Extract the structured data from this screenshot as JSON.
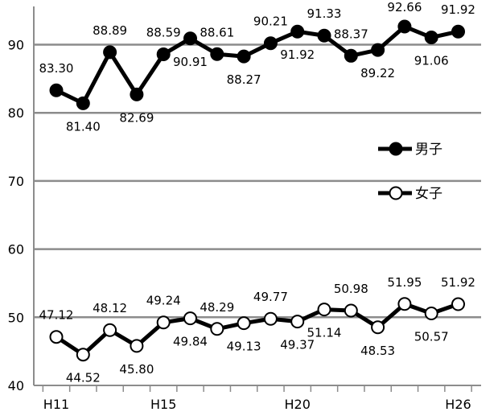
{
  "chart_data": {
    "type": "line",
    "x": [
      "H11",
      "H12",
      "H13",
      "H14",
      "H15",
      "H16",
      "H17",
      "H18",
      "H19",
      "H20",
      "H21",
      "H22",
      "H23",
      "H24",
      "H25",
      "H26"
    ],
    "x_tick_labels": [
      "H11",
      "H15",
      "H20",
      "H26"
    ],
    "ylim": [
      40,
      95
    ],
    "y_ticks": [
      40,
      50,
      60,
      70,
      80,
      90
    ],
    "grid": "horizontal",
    "legend_position": "right",
    "series": [
      {
        "name": "男子",
        "marker": "filled",
        "color": "#000000",
        "values": [
          83.3,
          81.4,
          88.89,
          82.69,
          88.59,
          90.91,
          88.61,
          88.27,
          90.21,
          91.92,
          91.33,
          88.37,
          89.22,
          92.66,
          91.06,
          91.92
        ],
        "labels": [
          "83.30",
          "81.40",
          "88.89",
          "82.69",
          "88.59",
          "90.91",
          "88.61",
          "88.27",
          "90.21",
          "91.92",
          "91.33",
          "88.37",
          "89.22",
          "92.66",
          "91.06",
          "91.92"
        ]
      },
      {
        "name": "女子",
        "marker": "hollow",
        "color": "#000000",
        "values": [
          47.12,
          44.52,
          48.12,
          45.8,
          49.24,
          49.84,
          48.29,
          49.13,
          49.77,
          49.37,
          51.14,
          50.98,
          48.53,
          51.95,
          50.57,
          51.92
        ],
        "labels": [
          "47.12",
          "44.52",
          "48.12",
          "45.80",
          "49.24",
          "49.84",
          "48.29",
          "49.13",
          "49.77",
          "49.37",
          "51.14",
          "50.98",
          "48.53",
          "51.95",
          "50.57",
          "51.92"
        ]
      }
    ]
  }
}
